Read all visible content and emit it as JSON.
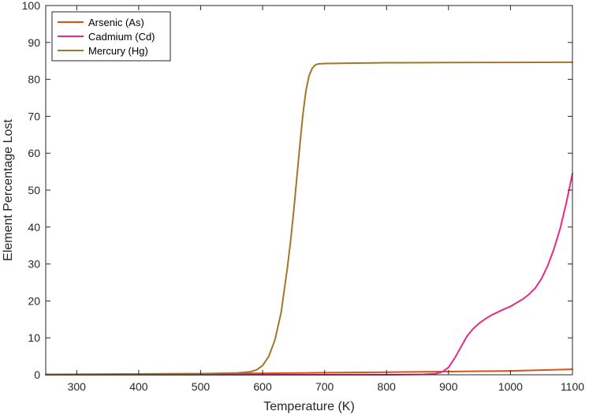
{
  "chart_data": {
    "type": "line",
    "xlabel": "Temperature (K)",
    "ylabel": "Element Percentage Lost",
    "xlim": [
      250,
      1100
    ],
    "ylim": [
      0,
      100
    ],
    "xticks": [
      300,
      400,
      500,
      600,
      700,
      800,
      900,
      1000,
      1100
    ],
    "yticks": [
      0,
      10,
      20,
      30,
      40,
      50,
      60,
      70,
      80,
      90,
      100
    ],
    "grid": false,
    "legend_position": "top-left",
    "series": [
      {
        "name": "Arsenic (As)",
        "color": "#D95319",
        "x": [
          250,
          300,
          400,
          500,
          600,
          700,
          800,
          900,
          950,
          1000,
          1050,
          1100
        ],
        "y": [
          0.05,
          0.1,
          0.2,
          0.3,
          0.4,
          0.55,
          0.7,
          0.85,
          0.95,
          1.05,
          1.25,
          1.5
        ]
      },
      {
        "name": "Cadmium (Cd)",
        "color": "#E7298A",
        "x": [
          250,
          400,
          600,
          800,
          860,
          880,
          890,
          900,
          910,
          920,
          930,
          940,
          950,
          960,
          970,
          980,
          990,
          1000,
          1010,
          1020,
          1030,
          1040,
          1050,
          1060,
          1070,
          1080,
          1090,
          1100
        ],
        "y": [
          0,
          0,
          0,
          0,
          0.1,
          0.3,
          0.8,
          2.0,
          4.5,
          7.5,
          10.5,
          12.5,
          14.0,
          15.2,
          16.2,
          17.0,
          17.8,
          18.5,
          19.5,
          20.5,
          21.8,
          23.5,
          26.0,
          29.5,
          34.0,
          39.5,
          46.5,
          54.5
        ]
      },
      {
        "name": "Mercury (Hg)",
        "color": "#A2762B",
        "x": [
          250,
          400,
          500,
          560,
          580,
          590,
          600,
          610,
          620,
          630,
          640,
          645,
          650,
          655,
          660,
          665,
          670,
          675,
          680,
          685,
          690,
          700,
          750,
          800,
          900,
          1000,
          1100
        ],
        "y": [
          0.1,
          0.2,
          0.3,
          0.5,
          0.8,
          1.3,
          2.5,
          5.0,
          9.5,
          17.0,
          29.0,
          36.0,
          44.0,
          53.0,
          62.0,
          70.5,
          77.0,
          81.0,
          83.0,
          83.9,
          84.2,
          84.3,
          84.4,
          84.5,
          84.55,
          84.6,
          84.65
        ]
      }
    ]
  }
}
